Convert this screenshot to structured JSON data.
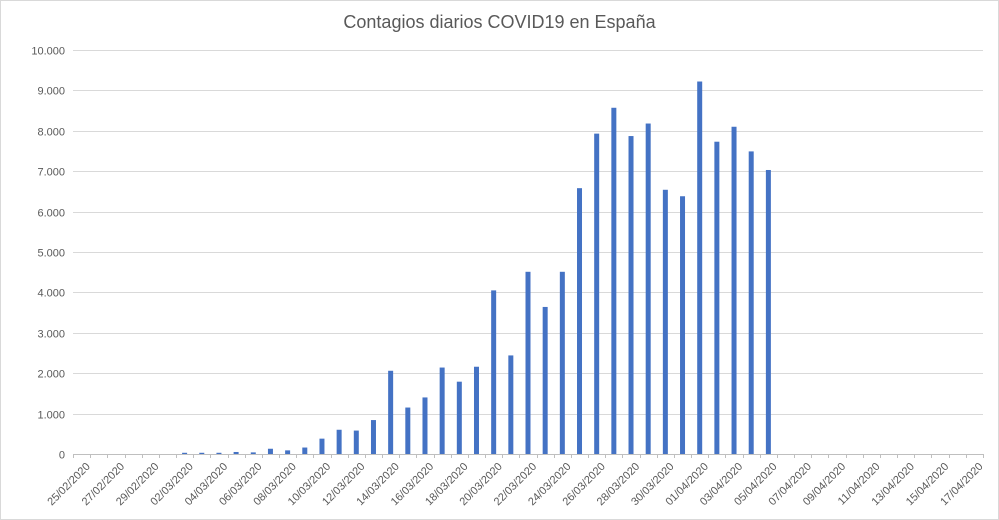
{
  "chart_data": {
    "type": "bar",
    "title": "Contagios diarios COVID19 en España",
    "xlabel": "",
    "ylabel": "",
    "ylim": [
      0,
      10000
    ],
    "y_ticks": [
      {
        "value": 0,
        "label": "0"
      },
      {
        "value": 1000,
        "label": "1.000"
      },
      {
        "value": 2000,
        "label": "2.000"
      },
      {
        "value": 3000,
        "label": "3.000"
      },
      {
        "value": 4000,
        "label": "4.000"
      },
      {
        "value": 5000,
        "label": "5.000"
      },
      {
        "value": 6000,
        "label": "6.000"
      },
      {
        "value": 7000,
        "label": "7.000"
      },
      {
        "value": 8000,
        "label": "8.000"
      },
      {
        "value": 9000,
        "label": "9.000"
      },
      {
        "value": 10000,
        "label": "10.000"
      }
    ],
    "grid": true,
    "legend": "none",
    "bar_color": "#4472c4",
    "categories": [
      "25/02/2020",
      "26/02/2020",
      "27/02/2020",
      "28/02/2020",
      "29/02/2020",
      "01/03/2020",
      "02/03/2020",
      "03/03/2020",
      "04/03/2020",
      "05/03/2020",
      "06/03/2020",
      "07/03/2020",
      "08/03/2020",
      "09/03/2020",
      "10/03/2020",
      "11/03/2020",
      "12/03/2020",
      "13/03/2020",
      "14/03/2020",
      "15/03/2020",
      "16/03/2020",
      "17/03/2020",
      "18/03/2020",
      "19/03/2020",
      "20/03/2020",
      "21/03/2020",
      "22/03/2020",
      "23/03/2020",
      "24/03/2020",
      "25/03/2020",
      "26/03/2020",
      "27/03/2020",
      "28/03/2020",
      "29/03/2020",
      "30/03/2020",
      "31/03/2020",
      "01/04/2020",
      "02/04/2020",
      "03/04/2020",
      "04/04/2020",
      "05/04/2020",
      "06/04/2020",
      "07/04/2020",
      "08/04/2020",
      "09/04/2020",
      "10/04/2020",
      "11/04/2020",
      "12/04/2020",
      "13/04/2020",
      "14/04/2020",
      "15/04/2020",
      "16/04/2020",
      "17/04/2020"
    ],
    "tick_labels": [
      "25/02/2020",
      "27/02/2020",
      "29/02/2020",
      "02/03/2020",
      "04/03/2020",
      "06/03/2020",
      "08/03/2020",
      "10/03/2020",
      "12/03/2020",
      "14/03/2020",
      "16/03/2020",
      "18/03/2020",
      "20/03/2020",
      "22/03/2020",
      "24/03/2020",
      "26/03/2020",
      "28/03/2020",
      "30/03/2020",
      "01/04/2020",
      "03/04/2020",
      "05/04/2020",
      "07/04/2020",
      "09/04/2020",
      "11/04/2020",
      "13/04/2020",
      "15/04/2020",
      "17/04/2020"
    ],
    "values": [
      0,
      0,
      0,
      0,
      0,
      0,
      30,
      30,
      30,
      50,
      40,
      130,
      90,
      160,
      380,
      600,
      580,
      840,
      2060,
      1150,
      1400,
      2140,
      1790,
      2160,
      4050,
      2440,
      4510,
      3640,
      4510,
      6580,
      7930,
      8570,
      7870,
      8180,
      6540,
      6380,
      9220,
      7730,
      8100,
      7490,
      7030,
      null,
      null,
      null,
      null,
      null,
      null,
      null,
      null,
      null,
      null,
      null,
      null
    ]
  }
}
